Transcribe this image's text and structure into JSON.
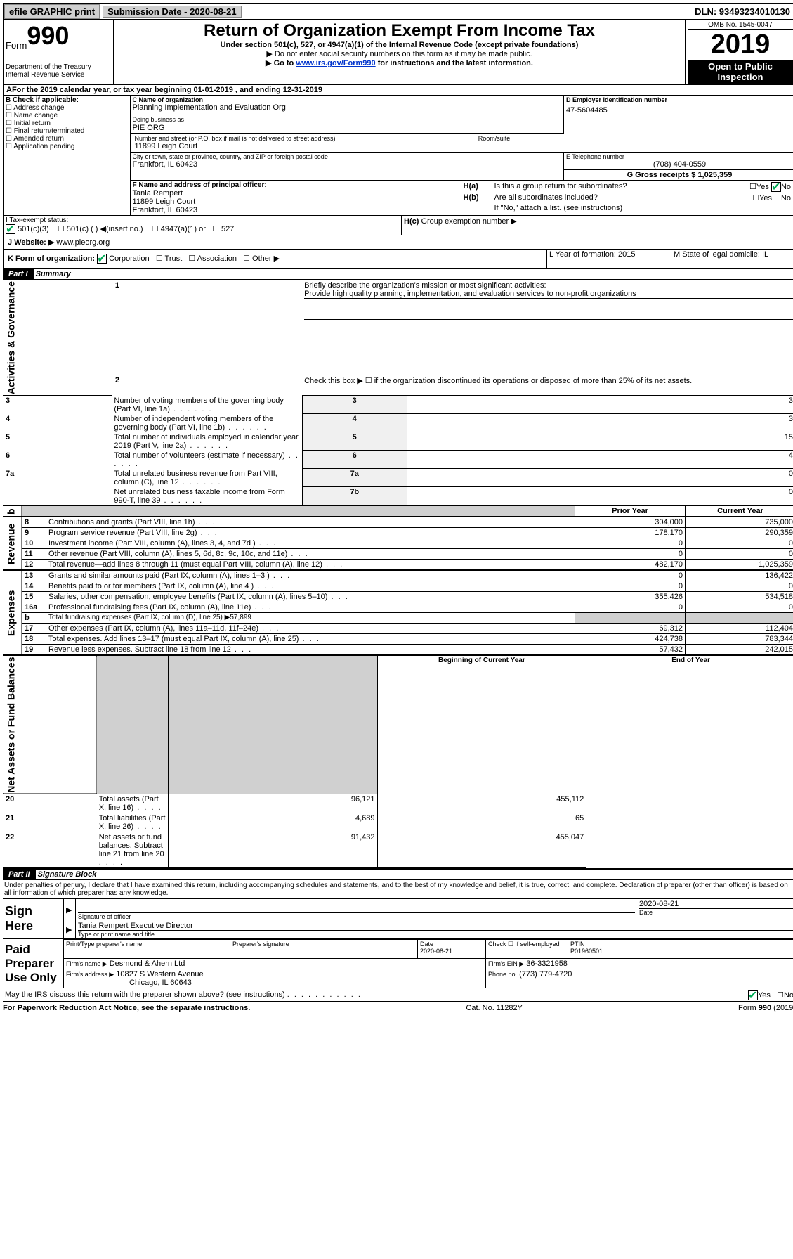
{
  "topbar": {
    "efile": "efile GRAPHIC print",
    "subdate_label": "Submission Date - 2020-08-21",
    "dln": "DLN: 93493234010130"
  },
  "header": {
    "form_prefix": "Form",
    "form_num": "990",
    "dept": "Department of the Treasury",
    "irs": "Internal Revenue Service",
    "title": "Return of Organization Exempt From Income Tax",
    "subtitle": "Under section 501(c), 527, or 4947(a)(1) of the Internal Revenue Code (except private foundations)",
    "instr1": "▶ Do not enter social security numbers on this form as it may be made public.",
    "instr2_pre": "▶ Go to ",
    "instr2_link": "www.irs.gov/Form990",
    "instr2_post": " for instructions and the latest information.",
    "omb": "OMB No. 1545-0047",
    "year": "2019",
    "open": "Open to Public Inspection"
  },
  "period": {
    "line": "For the 2019 calendar year, or tax year beginning 01-01-2019    , and ending 12-31-2019"
  },
  "boxB": {
    "label": "B Check if applicable:",
    "opts": [
      "Address change",
      "Name change",
      "Initial return",
      "Final return/terminated",
      "Amended return",
      "Application pending"
    ]
  },
  "boxC": {
    "name_label": "C Name of organization",
    "name": "Planning Implementation and Evaluation Org",
    "dba_label": "Doing business as",
    "dba": "PIE ORG",
    "addr_label": "Number and street (or P.O. box if mail is not delivered to street address)",
    "room_label": "Room/suite",
    "addr": "11899 Leigh Court",
    "city_label": "City or town, state or province, country, and ZIP or foreign postal code",
    "city": "Frankfort, IL  60423"
  },
  "boxD": {
    "label": "D Employer identification number",
    "value": "47-5604485"
  },
  "boxE": {
    "label": "E Telephone number",
    "value": "(708) 404-0559"
  },
  "boxF": {
    "label": "F  Name and address of principal officer:",
    "name": "Tania Rempert",
    "addr": "11899 Leigh Court",
    "city": "Frankfort, IL  60423"
  },
  "boxG": {
    "label": "G Gross receipts $ 1,025,359"
  },
  "boxH": {
    "a_pre": "H(a)",
    "a_text": "Is this a group return for subordinates?",
    "b_pre": "H(b)",
    "b_text": "Are all subordinates included?",
    "b_note": "If \"No,\" attach a list. (see instructions)",
    "c_pre": "H(c)",
    "c_text": "Group exemption number ▶",
    "yes": "Yes",
    "no": "No"
  },
  "taxExempt": {
    "label": "I    Tax-exempt status:",
    "opt1": "501(c)(3)",
    "opt2": "501(c) (   ) ◀(insert no.)",
    "opt3": "4947(a)(1) or",
    "opt4": "527"
  },
  "website": {
    "label": "J    Website: ▶",
    "value": "www.pieorg.org"
  },
  "boxK": {
    "label": "K Form of organization:",
    "corp": "Corporation",
    "trust": "Trust",
    "assoc": "Association",
    "other": "Other ▶"
  },
  "boxL": {
    "label": "L Year of formation: 2015"
  },
  "boxM": {
    "label": "M State of legal domicile: IL"
  },
  "part1": {
    "hdr": "Part I",
    "title": "Summary"
  },
  "lines_top": {
    "l1_label": "Briefly describe the organization's mission or most significant activities:",
    "l1_text": "Provide high quality planning, implementation, and evaluation services to non-profit organizations",
    "l2": "Check this box ▶ ☐  if the organization discontinued its operations or disposed of more than 25% of its net assets."
  },
  "governance": [
    {
      "n": "3",
      "t": "Number of voting members of the governing body (Part VI, line 1a)",
      "k": "3",
      "v": "3"
    },
    {
      "n": "4",
      "t": "Number of independent voting members of the governing body (Part VI, line 1b)",
      "k": "4",
      "v": "3"
    },
    {
      "n": "5",
      "t": "Total number of individuals employed in calendar year 2019 (Part V, line 2a)",
      "k": "5",
      "v": "15"
    },
    {
      "n": "6",
      "t": "Total number of volunteers (estimate if necessary)",
      "k": "6",
      "v": "4"
    },
    {
      "n": "7a",
      "t": "Total unrelated business revenue from Part VIII, column (C), line 12",
      "k": "7a",
      "v": "0"
    },
    {
      "n": "",
      "t": "Net unrelated business taxable income from Form 990-T, line 39",
      "k": "7b",
      "v": "0"
    }
  ],
  "sidebars": {
    "ag": "Activities & Governance",
    "rev": "Revenue",
    "exp": "Expenses",
    "naf": "Net Assets or Fund Balances",
    "b": "b"
  },
  "colhdr": {
    "prior": "Prior Year",
    "curr": "Current Year",
    "boy": "Beginning of Current Year",
    "eoy": "End of Year"
  },
  "revenue": [
    {
      "n": "8",
      "t": "Contributions and grants (Part VIII, line 1h)",
      "p": "304,000",
      "c": "735,000"
    },
    {
      "n": "9",
      "t": "Program service revenue (Part VIII, line 2g)",
      "p": "178,170",
      "c": "290,359"
    },
    {
      "n": "10",
      "t": "Investment income (Part VIII, column (A), lines 3, 4, and 7d )",
      "p": "0",
      "c": "0"
    },
    {
      "n": "11",
      "t": "Other revenue (Part VIII, column (A), lines 5, 6d, 8c, 9c, 10c, and 11e)",
      "p": "0",
      "c": "0"
    },
    {
      "n": "12",
      "t": "Total revenue—add lines 8 through 11 (must equal Part VIII, column (A), line 12)",
      "p": "482,170",
      "c": "1,025,359"
    }
  ],
  "expenses": [
    {
      "n": "13",
      "t": "Grants and similar amounts paid (Part IX, column (A), lines 1–3 )",
      "p": "0",
      "c": "136,422"
    },
    {
      "n": "14",
      "t": "Benefits paid to or for members (Part IX, column (A), line 4 )",
      "p": "0",
      "c": "0"
    },
    {
      "n": "15",
      "t": "Salaries, other compensation, employee benefits (Part IX, column (A), lines 5–10)",
      "p": "355,426",
      "c": "534,518"
    },
    {
      "n": "16a",
      "t": "Professional fundraising fees (Part IX, column (A), line 11e)",
      "p": "0",
      "c": "0"
    }
  ],
  "exp16b": {
    "n": "b",
    "t": "Total fundraising expenses (Part IX, column (D), line 25) ▶57,899"
  },
  "expenses2": [
    {
      "n": "17",
      "t": "Other expenses (Part IX, column (A), lines 11a–11d, 11f–24e)",
      "p": "69,312",
      "c": "112,404"
    },
    {
      "n": "18",
      "t": "Total expenses. Add lines 13–17 (must equal Part IX, column (A), line 25)",
      "p": "424,738",
      "c": "783,344"
    },
    {
      "n": "19",
      "t": "Revenue less expenses. Subtract line 18 from line 12",
      "p": "57,432",
      "c": "242,015"
    }
  ],
  "netassets": [
    {
      "n": "20",
      "t": "Total assets (Part X, line 16)",
      "p": "96,121",
      "c": "455,112"
    },
    {
      "n": "21",
      "t": "Total liabilities (Part X, line 26)",
      "p": "4,689",
      "c": "65"
    },
    {
      "n": "22",
      "t": "Net assets or fund balances. Subtract line 21 from line 20",
      "p": "91,432",
      "c": "455,047"
    }
  ],
  "part2": {
    "hdr": "Part II",
    "title": "Signature Block"
  },
  "perjury": "Under penalties of perjury, I declare that I have examined this return, including accompanying schedules and statements, and to the best of my knowledge and belief, it is true, correct, and complete. Declaration of preparer (other than officer) is based on all information of which preparer has any knowledge.",
  "sign": {
    "here": "Sign Here",
    "sig_label": "Signature of officer",
    "date_label": "Date",
    "date": "2020-08-21",
    "name": "Tania Rempert  Executive Director",
    "name_label": "Type or print name and title"
  },
  "paid": {
    "here": "Paid Preparer Use Only",
    "c1": "Print/Type preparer's name",
    "c2": "Preparer's signature",
    "c3": "Date",
    "c3v": "2020-08-21",
    "c4": "Check ☐ if self-employed",
    "c5": "PTIN",
    "c5v": "P01960501",
    "firm_label": "Firm's name    ▶",
    "firm": "Desmond & Ahern Ltd",
    "ein_label": "Firm's EIN ▶",
    "ein": "36-3321958",
    "addr_label": "Firm's address ▶",
    "addr": "10827 S Western Avenue",
    "city": "Chicago, IL  60643",
    "phone_label": "Phone no.",
    "phone": "(773) 779-4720"
  },
  "discuss": "May the IRS discuss this return with the preparer shown above? (see instructions)",
  "footer": {
    "l": "For Paperwork Reduction Act Notice, see the separate instructions.",
    "m": "Cat. No. 11282Y",
    "r": "Form 990 (2019)"
  }
}
